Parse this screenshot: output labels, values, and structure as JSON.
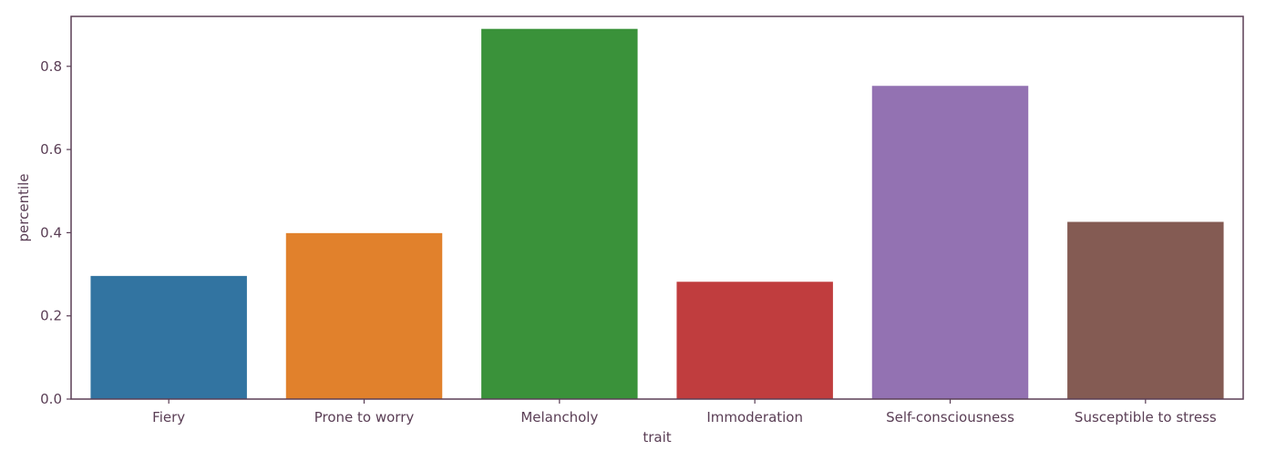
{
  "chart_data": {
    "type": "bar",
    "title": "",
    "xlabel": "trait",
    "ylabel": "percentile",
    "categories": [
      "Fiery",
      "Prone to worry",
      "Melancholy",
      "Immoderation",
      "Self-consciousness",
      "Susceptible to stress"
    ],
    "values": [
      0.296,
      0.399,
      0.89,
      0.282,
      0.753,
      0.426
    ],
    "colors": [
      "#3274a1",
      "#e1812c",
      "#3a923a",
      "#c03d3e",
      "#9372b2",
      "#845b53"
    ],
    "ylim": [
      0,
      0.92
    ],
    "yticks": [
      0.0,
      0.2,
      0.4,
      0.6,
      0.8
    ],
    "ytick_labels": [
      "0.0",
      "0.2",
      "0.4",
      "0.6",
      "0.8"
    ],
    "grid": false,
    "axis_color": "#5a3e55"
  }
}
